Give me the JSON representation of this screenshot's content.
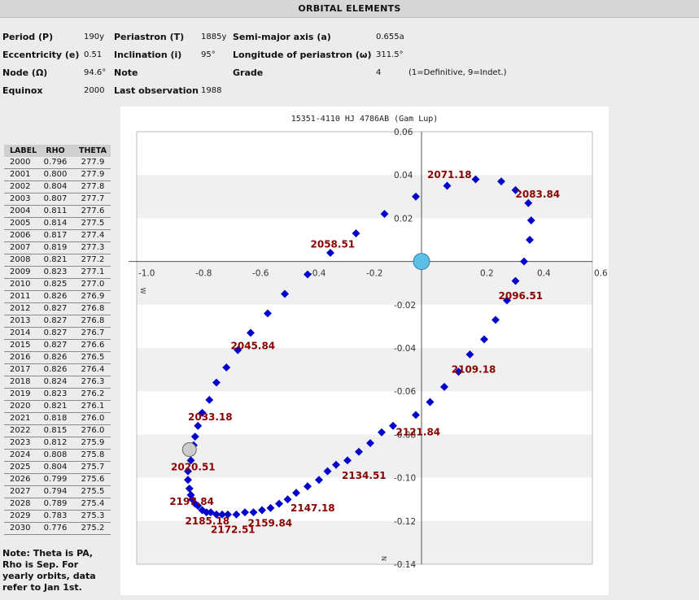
{
  "header": {
    "title": "ORBITAL ELEMENTS"
  },
  "elements": {
    "period": {
      "label": "Period (P)",
      "value": "190y"
    },
    "periastron": {
      "label": "Periastron (T)",
      "value": "1885y"
    },
    "semimajor": {
      "label": "Semi-major axis (a)",
      "value": "0.655a"
    },
    "eccentricity": {
      "label": "Eccentricity (e)",
      "value": "0.51"
    },
    "inclination": {
      "label": "Inclination (i)",
      "value": "95°"
    },
    "longitude": {
      "label": "Longitude of periastron (ω)",
      "value": "311.5°"
    },
    "node": {
      "label": "Node (Ω)",
      "value": "94.6°"
    },
    "note": {
      "label": "Note",
      "value": ""
    },
    "grade": {
      "label": "Grade",
      "value": "4",
      "legend": "(1=Definitive, 9=Indet.)"
    },
    "equinox": {
      "label": "Equinox",
      "value": "2000"
    },
    "last_observation": {
      "label": "Last observation",
      "value": "1988"
    }
  },
  "ephemeris": {
    "headers": [
      "LABEL",
      "RHO",
      "THETA"
    ],
    "rows": [
      [
        "2000",
        "0.796",
        "277.9"
      ],
      [
        "2001",
        "0.800",
        "277.9"
      ],
      [
        "2002",
        "0.804",
        "277.8"
      ],
      [
        "2003",
        "0.807",
        "277.7"
      ],
      [
        "2004",
        "0.811",
        "277.6"
      ],
      [
        "2005",
        "0.814",
        "277.5"
      ],
      [
        "2006",
        "0.817",
        "277.4"
      ],
      [
        "2007",
        "0.819",
        "277.3"
      ],
      [
        "2008",
        "0.821",
        "277.2"
      ],
      [
        "2009",
        "0.823",
        "277.1"
      ],
      [
        "2010",
        "0.825",
        "277.0"
      ],
      [
        "2011",
        "0.826",
        "276.9"
      ],
      [
        "2012",
        "0.827",
        "276.8"
      ],
      [
        "2013",
        "0.827",
        "276.8"
      ],
      [
        "2014",
        "0.827",
        "276.7"
      ],
      [
        "2015",
        "0.827",
        "276.6"
      ],
      [
        "2016",
        "0.826",
        "276.5"
      ],
      [
        "2017",
        "0.826",
        "276.4"
      ],
      [
        "2018",
        "0.824",
        "276.3"
      ],
      [
        "2019",
        "0.823",
        "276.2"
      ],
      [
        "2020",
        "0.821",
        "276.1"
      ],
      [
        "2021",
        "0.818",
        "276.0"
      ],
      [
        "2022",
        "0.815",
        "276.0"
      ],
      [
        "2023",
        "0.812",
        "275.9"
      ],
      [
        "2024",
        "0.808",
        "275.8"
      ],
      [
        "2025",
        "0.804",
        "275.7"
      ],
      [
        "2026",
        "0.799",
        "275.6"
      ],
      [
        "2027",
        "0.794",
        "275.5"
      ],
      [
        "2028",
        "0.789",
        "275.4"
      ],
      [
        "2029",
        "0.783",
        "275.3"
      ],
      [
        "2030",
        "0.776",
        "275.2"
      ]
    ]
  },
  "footnote": "Note: Theta is PA, Rho is Sep. For yearly orbits, data refer to Jan 1st.",
  "chart_data": {
    "type": "scatter",
    "title": "15351-4110 HJ 4786AB (Gam Lup)",
    "xlim": [
      -1.0,
      0.6
    ],
    "ylim": [
      -0.14,
      0.06
    ],
    "x_ticks": [
      "-1.0",
      "-0.8",
      "-0.6",
      "-0.4",
      "-0.2",
      "0.2",
      "0.4",
      "0.6"
    ],
    "x_tick_values": [
      -1.0,
      -0.8,
      -0.6,
      -0.4,
      -0.2,
      0.2,
      0.4,
      0.6
    ],
    "y_ticks": [
      "0.06",
      "0.04",
      "0.02",
      "-0.02",
      "-0.04",
      "-0.06",
      "-0.08",
      "-0.10",
      "-0.12",
      "-0.14"
    ],
    "y_tick_values": [
      0.06,
      0.04,
      0.02,
      -0.02,
      -0.04,
      -0.06,
      -0.08,
      -0.1,
      -0.12,
      -0.14
    ],
    "x_axis_letter": "W",
    "y_axis_letter": "N",
    "grid": "horizontal bands",
    "primary": {
      "x": 0,
      "y": 0,
      "color": "#5bbfe8"
    },
    "current_position": {
      "x": -0.815,
      "y": -0.087,
      "color": "#cccccc"
    },
    "point_color": "#0000cc",
    "label_color": "#8b0000",
    "points": [
      [
        -0.8,
        -0.085
      ],
      [
        -0.81,
        -0.092
      ],
      [
        -0.82,
        -0.097
      ],
      [
        -0.82,
        -0.101
      ],
      [
        -0.815,
        -0.105
      ],
      [
        -0.81,
        -0.108
      ],
      [
        -0.805,
        -0.11
      ],
      [
        -0.795,
        -0.112
      ],
      [
        -0.785,
        -0.113
      ],
      [
        -0.77,
        -0.115
      ],
      [
        -0.755,
        -0.116
      ],
      [
        -0.74,
        -0.116
      ],
      [
        -0.72,
        -0.117
      ],
      [
        -0.7,
        -0.117
      ],
      [
        -0.68,
        -0.117
      ],
      [
        -0.65,
        -0.117
      ],
      [
        -0.62,
        -0.116
      ],
      [
        -0.59,
        -0.116
      ],
      [
        -0.56,
        -0.115
      ],
      [
        -0.53,
        -0.114
      ],
      [
        -0.5,
        -0.112
      ],
      [
        -0.47,
        -0.11
      ],
      [
        -0.44,
        -0.107
      ],
      [
        -0.4,
        -0.104
      ],
      [
        -0.36,
        -0.101
      ],
      [
        -0.33,
        -0.097
      ],
      [
        -0.3,
        -0.094
      ],
      [
        -0.26,
        -0.092
      ],
      [
        -0.22,
        -0.088
      ],
      [
        -0.18,
        -0.084
      ],
      [
        -0.14,
        -0.079
      ],
      [
        -0.1,
        -0.076
      ],
      [
        -0.02,
        -0.071
      ],
      [
        0.03,
        -0.065
      ],
      [
        0.08,
        -0.058
      ],
      [
        0.13,
        -0.051
      ],
      [
        0.17,
        -0.043
      ],
      [
        0.22,
        -0.036
      ],
      [
        0.26,
        -0.027
      ],
      [
        0.3,
        -0.018
      ],
      [
        0.33,
        -0.009
      ],
      [
        0.36,
        0.0
      ],
      [
        0.38,
        0.01
      ],
      [
        0.385,
        0.019
      ],
      [
        0.375,
        0.027
      ],
      [
        0.33,
        0.033
      ],
      [
        0.28,
        0.037
      ],
      [
        0.19,
        0.038
      ],
      [
        0.09,
        0.035
      ],
      [
        -0.02,
        0.03
      ],
      [
        -0.13,
        0.022
      ],
      [
        -0.23,
        0.013
      ],
      [
        -0.32,
        0.004
      ],
      [
        -0.4,
        -0.006
      ],
      [
        -0.48,
        -0.015
      ],
      [
        -0.54,
        -0.024
      ],
      [
        -0.6,
        -0.033
      ],
      [
        -0.645,
        -0.041
      ],
      [
        -0.685,
        -0.049
      ],
      [
        -0.72,
        -0.056
      ],
      [
        -0.745,
        -0.064
      ],
      [
        -0.77,
        -0.07
      ],
      [
        -0.785,
        -0.076
      ],
      [
        -0.795,
        -0.081
      ]
    ],
    "labels": [
      {
        "text": "2071.18",
        "x": 0.02,
        "y": 0.04
      },
      {
        "text": "2083.84",
        "x": 0.33,
        "y": 0.031
      },
      {
        "text": "2058.51",
        "x": -0.39,
        "y": 0.008
      },
      {
        "text": "2096.51",
        "x": 0.27,
        "y": -0.016
      },
      {
        "text": "2045.84",
        "x": -0.67,
        "y": -0.039
      },
      {
        "text": "2109.18",
        "x": 0.105,
        "y": -0.05
      },
      {
        "text": "2033.18",
        "x": -0.82,
        "y": -0.072
      },
      {
        "text": "2121.84",
        "x": -0.09,
        "y": -0.079
      },
      {
        "text": "2020.51",
        "x": -0.88,
        "y": -0.095
      },
      {
        "text": "2134.51",
        "x": -0.28,
        "y": -0.099
      },
      {
        "text": "2197.84",
        "x": -0.885,
        "y": -0.111
      },
      {
        "text": "2147.18",
        "x": -0.46,
        "y": -0.114
      },
      {
        "text": "2185.18",
        "x": -0.83,
        "y": -0.12
      },
      {
        "text": "2159.84",
        "x": -0.61,
        "y": -0.121
      },
      {
        "text": "2172.51",
        "x": -0.74,
        "y": -0.124
      }
    ]
  }
}
